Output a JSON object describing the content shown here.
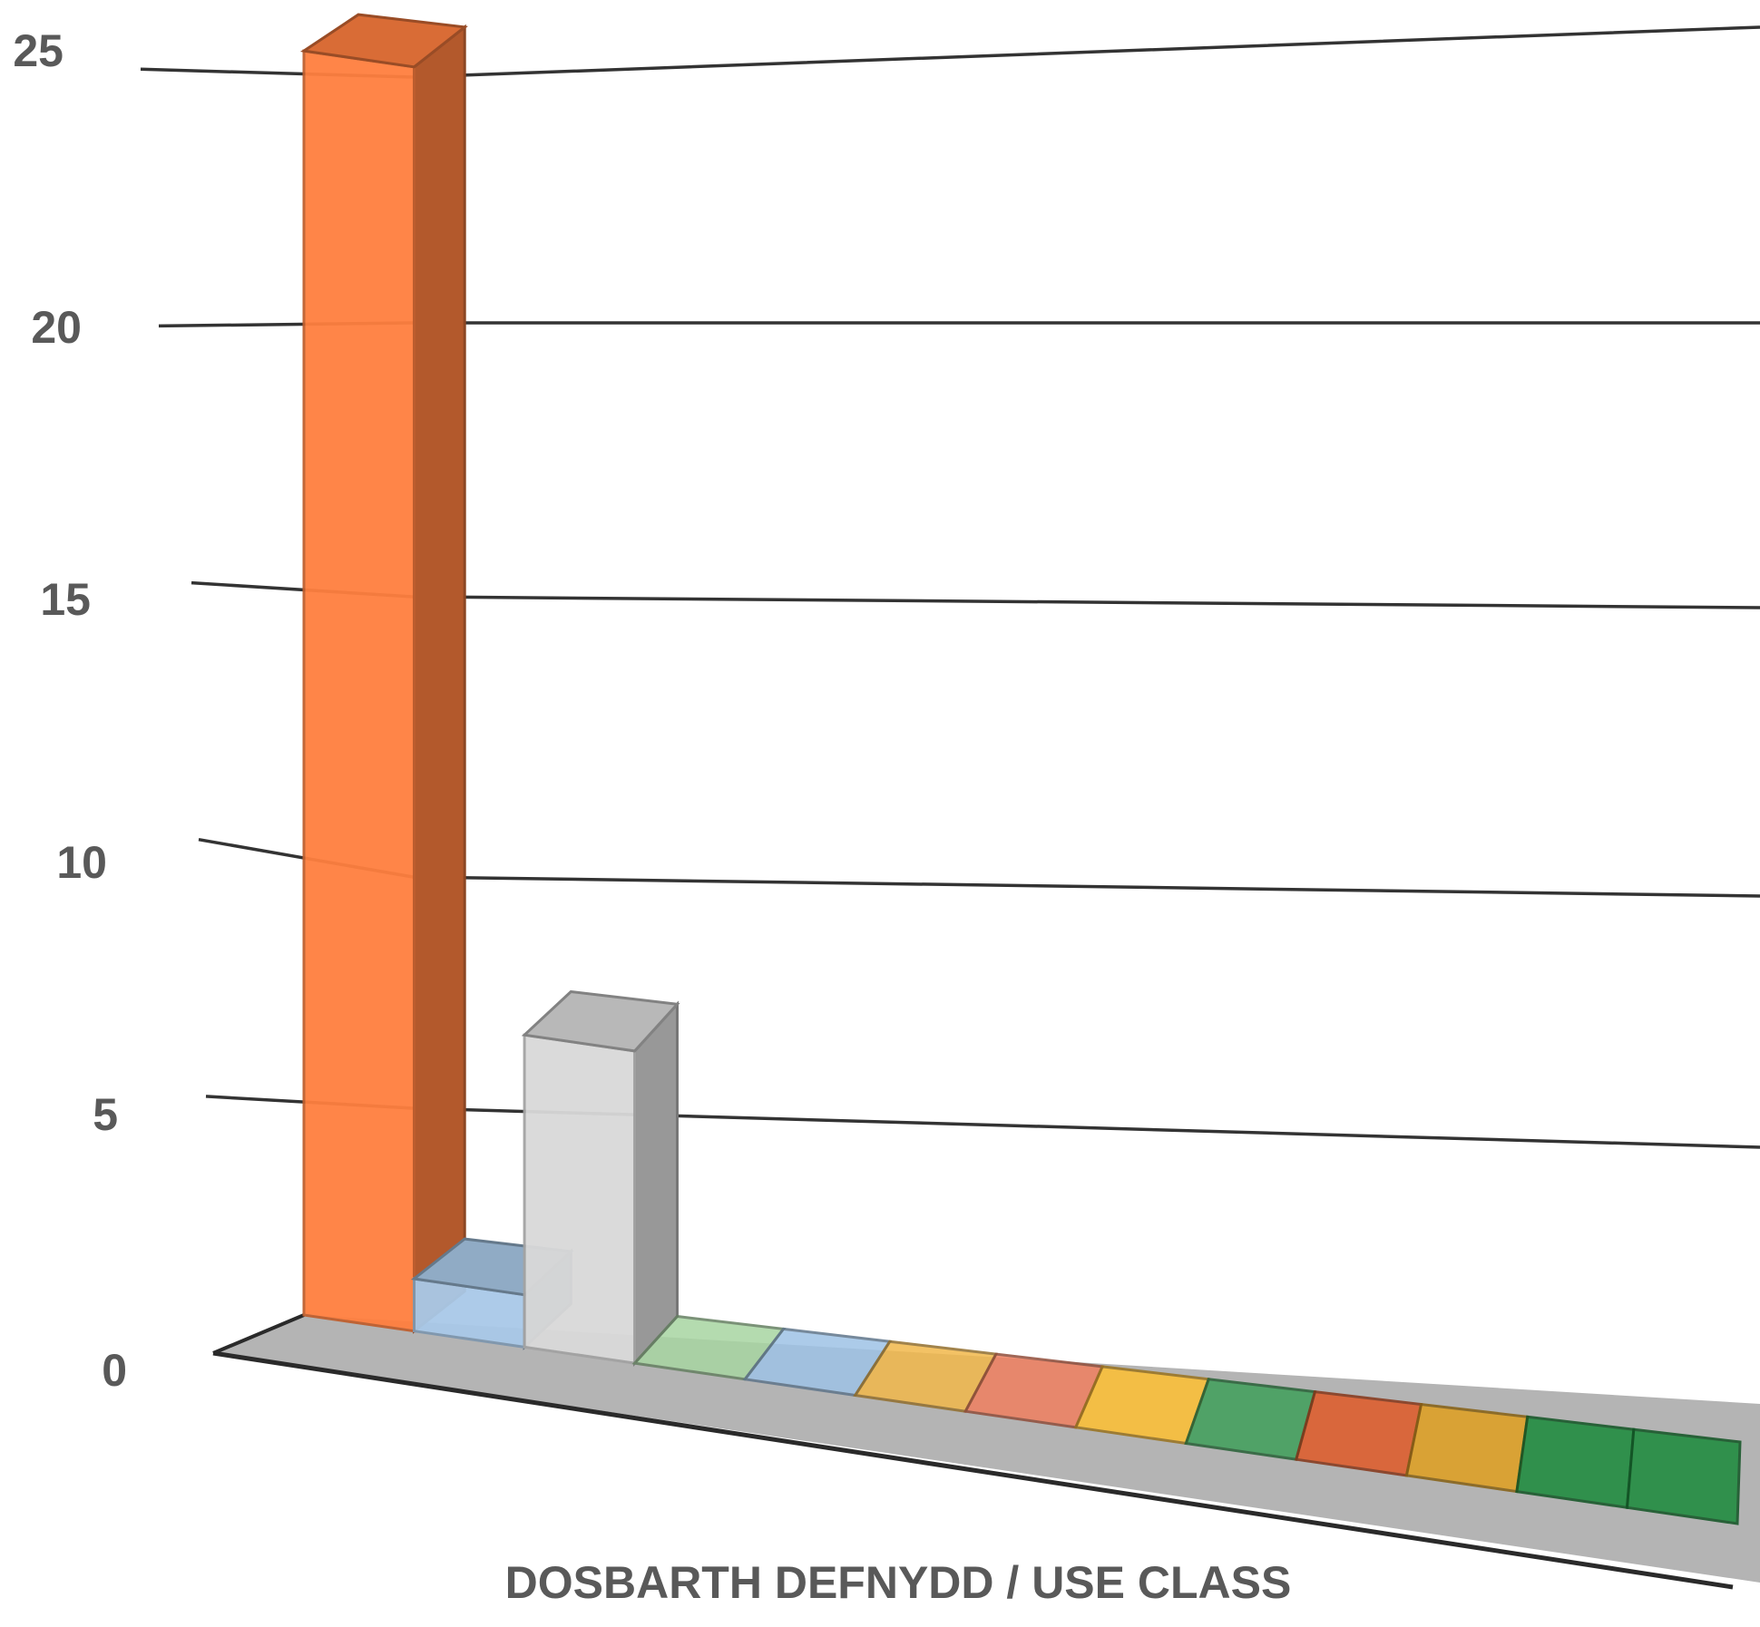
{
  "chart_data": {
    "type": "bar",
    "title": "",
    "xlabel": "DOSBARTH DEFNYDD / USE CLASS",
    "ylabel": "",
    "ylim": [
      0,
      25
    ],
    "yticks": [
      0,
      5,
      10,
      15,
      20,
      25
    ],
    "grid": true,
    "legend": "none",
    "three_d": true,
    "categories": [
      "",
      "",
      "",
      "",
      "",
      "",
      "",
      "",
      "",
      "",
      "",
      "",
      ""
    ],
    "values": [
      24,
      1,
      6,
      0,
      0,
      0,
      0,
      0,
      0,
      0,
      0,
      0,
      0
    ],
    "colors": [
      "#ff7f3f",
      "#a9c9e8",
      "#d9d9d9",
      "#a8d5a2",
      "#9ec3e6",
      "#f2b84b",
      "#f08060",
      "#ffc032",
      "#3fa05a",
      "#e05a28",
      "#e0a020",
      "#1a8a3a",
      "#1a8a3a"
    ]
  }
}
